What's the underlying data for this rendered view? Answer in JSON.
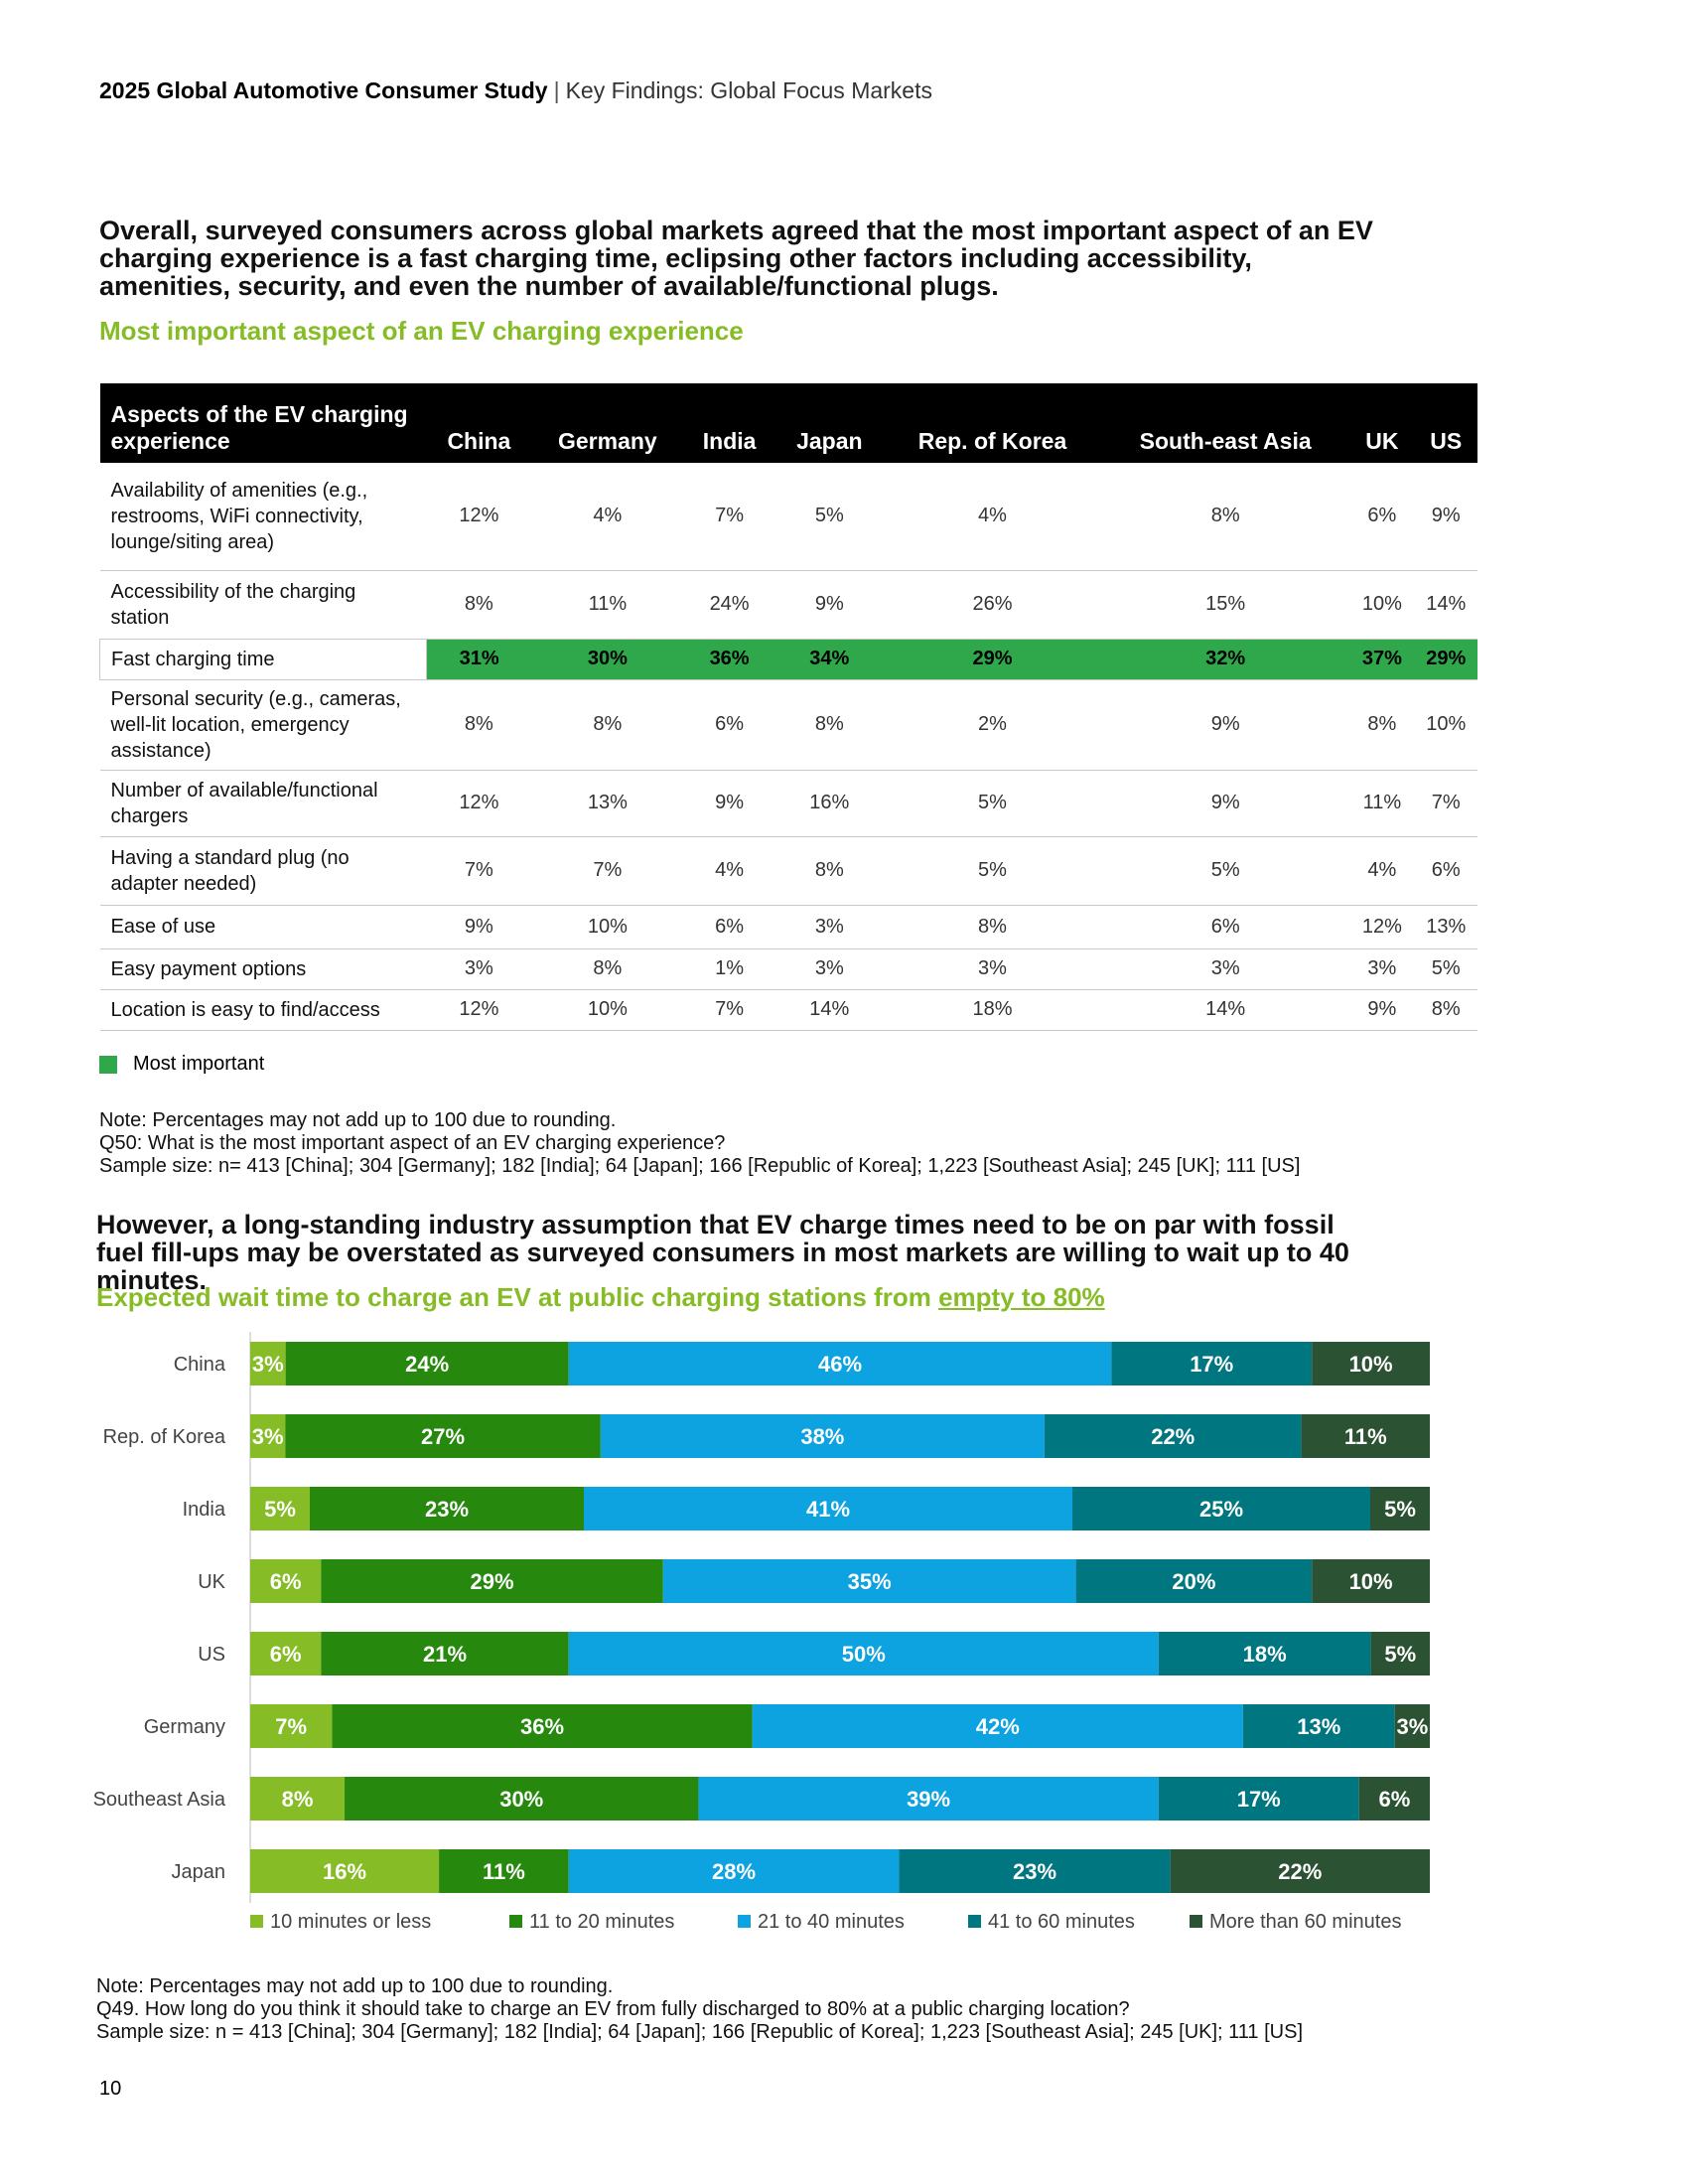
{
  "header": {
    "title": "2025 Global Automotive Consumer Study",
    "separator": "|",
    "section": "Key Findings: Global Focus Markets"
  },
  "headline1": "Overall, surveyed consumers across global markets agreed that the most important aspect of an EV charging experience is a fast charging time, eclipsing other factors including accessibility, amenities, security, and even the number of available/functional plugs.",
  "subhead1": "Most important aspect of an EV charging experience",
  "table": {
    "header_first": "Aspects of the EV charging experience",
    "columns": [
      "China",
      "Germany",
      "India",
      "Japan",
      "Rep. of Korea",
      "South-east Asia",
      "UK",
      "US"
    ],
    "rows": [
      {
        "label": "Availability of amenities (e.g., restrooms, WiFi connectivity, lounge/siting area)",
        "values": [
          "12%",
          "4%",
          "7%",
          "5%",
          "4%",
          "8%",
          "6%",
          "9%"
        ],
        "highlight": false
      },
      {
        "label": "Accessibility of the charging station",
        "values": [
          "8%",
          "11%",
          "24%",
          "9%",
          "26%",
          "15%",
          "10%",
          "14%"
        ],
        "highlight": false
      },
      {
        "label": "Fast charging time",
        "values": [
          "31%",
          "30%",
          "36%",
          "34%",
          "29%",
          "32%",
          "37%",
          "29%"
        ],
        "highlight": true
      },
      {
        "label": "Personal security (e.g., cameras, well-lit location, emergency assistance)",
        "values": [
          "8%",
          "8%",
          "6%",
          "8%",
          "2%",
          "9%",
          "8%",
          "10%"
        ],
        "highlight": false
      },
      {
        "label": "Number of available/functional chargers",
        "values": [
          "12%",
          "13%",
          "9%",
          "16%",
          "5%",
          "9%",
          "11%",
          "7%"
        ],
        "highlight": false
      },
      {
        "label": "Having a standard plug (no adapter needed)",
        "values": [
          "7%",
          "7%",
          "4%",
          "8%",
          "5%",
          "5%",
          "4%",
          "6%"
        ],
        "highlight": false
      },
      {
        "label": "Ease of use",
        "values": [
          "9%",
          "10%",
          "6%",
          "3%",
          "8%",
          "6%",
          "12%",
          "13%"
        ],
        "highlight": false
      },
      {
        "label": "Easy payment options",
        "values": [
          "3%",
          "8%",
          "1%",
          "3%",
          "3%",
          "3%",
          "3%",
          "5%"
        ],
        "highlight": false
      },
      {
        "label": "Location is easy to find/access",
        "values": [
          "12%",
          "10%",
          "7%",
          "14%",
          "18%",
          "14%",
          "9%",
          "8%"
        ],
        "highlight": false
      }
    ],
    "highlight_color": "#2ea84a"
  },
  "legend1": "Most important",
  "note1": [
    "Note: Percentages may not add up to 100 due to rounding.",
    "Q50: What is the most important aspect of an EV charging experience?",
    "Sample size: n= 413 [China]; 304 [Germany]; 182 [India]; 64 [Japan]; 166 [Republic of Korea]; 1,223 [Southeast Asia]; 245 [UK]; 111 [US]"
  ],
  "headline2": "However, a long-standing industry assumption that EV charge times need to be on par with fossil fuel fill-ups may be overstated as surveyed consumers in most markets are willing to wait up to 40 minutes.",
  "subhead2": {
    "prefix": "Expected wait time to charge an EV at public charging stations from ",
    "underlined": "empty to 80%"
  },
  "chart_data": {
    "type": "bar",
    "orientation": "horizontal",
    "stacked": true,
    "categories": [
      "China",
      "Rep. of Korea",
      "India",
      "UK",
      "US",
      "Germany",
      "Southeast Asia",
      "Japan"
    ],
    "series": [
      {
        "name": "10 minutes or less",
        "color": "#86bc25",
        "values": [
          3,
          3,
          5,
          6,
          6,
          7,
          8,
          16
        ],
        "labels": [
          "3%",
          "3%",
          "5%",
          "6%",
          "6%",
          "7%",
          "8%",
          "16%"
        ]
      },
      {
        "name": "11 to 20 minutes",
        "color": "#26890d",
        "values": [
          24,
          27,
          23,
          29,
          21,
          36,
          30,
          11
        ],
        "labels": [
          "24%",
          "27%",
          "23%",
          "29%",
          "21%",
          "36%",
          "30%",
          "11%"
        ]
      },
      {
        "name": "21 to 40 minutes",
        "color": "#0da2e0",
        "values": [
          46,
          38,
          41,
          35,
          50,
          42,
          39,
          28
        ],
        "labels": [
          "46%",
          "38%",
          "41%",
          "35%",
          "50%",
          "42%",
          "39%",
          "28%"
        ]
      },
      {
        "name": "41 to 60 minutes",
        "color": "#007680",
        "values": [
          17,
          22,
          25,
          20,
          18,
          13,
          17,
          23
        ],
        "labels": [
          "17%",
          "22%",
          "25%",
          "20%",
          "18%",
          "13%",
          "17%",
          "23%"
        ]
      },
      {
        "name": "More than 60 minutes",
        "color": "#2c5234",
        "values": [
          10,
          11,
          5,
          10,
          5,
          3,
          6,
          22
        ],
        "labels": [
          "10%",
          "11%",
          "5%",
          "10%",
          "5%",
          "3%",
          "6%",
          "22%"
        ]
      }
    ],
    "legend_position": "bottom",
    "grid": false
  },
  "note2": [
    "Note: Percentages may not add up to 100 due to rounding.",
    "Q49. How long do you think it should take to charge an EV from fully discharged to 80% at a public charging location?",
    "Sample size: n = 413 [China]; 304 [Germany]; 182 [India]; 64 [Japan]; 166 [Republic of Korea]; 1,223 [Southeast Asia]; 245 [UK]; 111 [US]"
  ],
  "page_number": "10"
}
